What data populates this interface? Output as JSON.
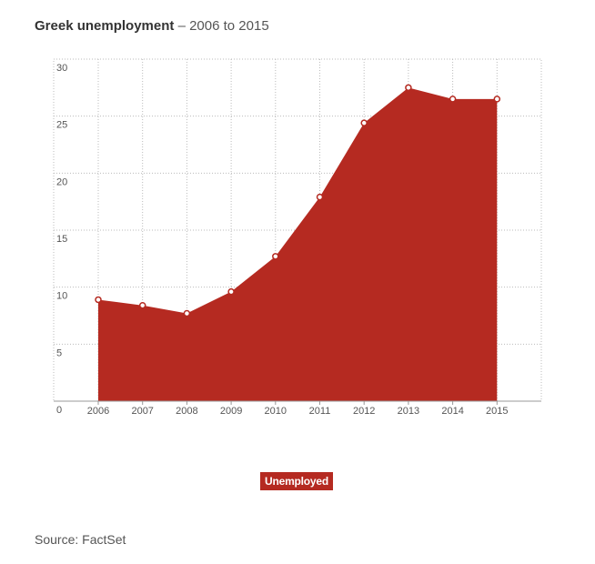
{
  "title": {
    "main": "Greek unemployment",
    "separator": "–",
    "sub": "2006 to 2015"
  },
  "legend": {
    "label": "Unemployed"
  },
  "source": "Source: FactSet",
  "colors": {
    "series": "#b52a21",
    "grid": "#bbbbbb",
    "axis": "#999999",
    "text": "#555555"
  },
  "chart_data": {
    "type": "area",
    "title": "Greek unemployment – 2006 to 2015",
    "xlabel": "",
    "ylabel": "",
    "x": [
      "2006",
      "2007",
      "2008",
      "2009",
      "2010",
      "2011",
      "2012",
      "2013",
      "2014",
      "2015"
    ],
    "series": [
      {
        "name": "Unemployed",
        "values": [
          8.9,
          8.4,
          7.7,
          9.6,
          12.7,
          17.9,
          24.4,
          27.5,
          26.5,
          26.5
        ]
      }
    ],
    "y_ticks": [
      0,
      5,
      10,
      15,
      20,
      25,
      30
    ],
    "ylim": [
      0,
      30
    ],
    "grid": true,
    "legend_position": "bottom-center"
  }
}
